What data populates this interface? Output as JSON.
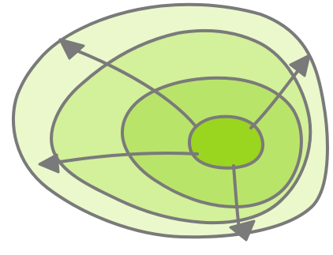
{
  "diagram": {
    "type": "concentric-regions",
    "region_count": 4,
    "arrow_count": 4,
    "colors": {
      "region_outer": "#eaf8cc",
      "region_second": "#d3f09a",
      "region_third": "#b9e46a",
      "region_core": "#9ad520",
      "stroke": "#7a7a7a"
    },
    "regions": [
      {
        "name": "outer-region",
        "level": 1
      },
      {
        "name": "second-region",
        "level": 2
      },
      {
        "name": "third-region",
        "level": 3
      },
      {
        "name": "core-region",
        "level": 4
      }
    ],
    "arrows": [
      {
        "name": "arrow-top-left",
        "direction": "top-left"
      },
      {
        "name": "arrow-top-right",
        "direction": "top-right"
      },
      {
        "name": "arrow-left",
        "direction": "left"
      },
      {
        "name": "arrow-bottom-right",
        "direction": "bottom-right"
      }
    ]
  }
}
